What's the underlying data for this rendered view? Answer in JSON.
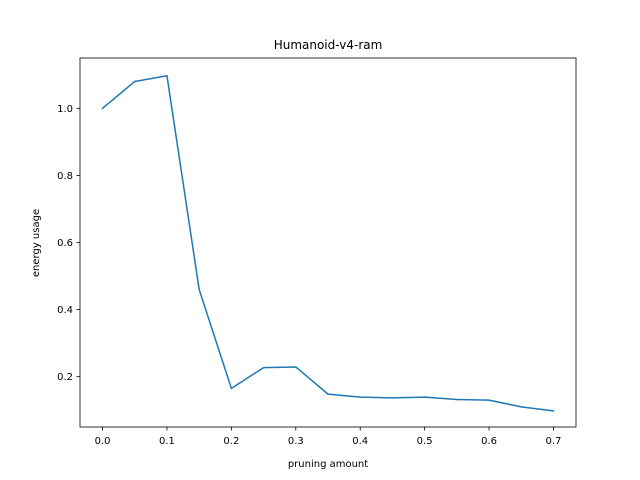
{
  "chart_data": {
    "type": "line",
    "title": "Humanoid-v4-ram",
    "xlabel": "pruning amount",
    "ylabel": "energy usage",
    "xlim": [
      -0.035,
      0.735
    ],
    "ylim": [
      0.05,
      1.15
    ],
    "grid": false,
    "x_ticks": [
      0.0,
      0.1,
      0.2,
      0.3,
      0.4,
      0.5,
      0.6,
      0.7
    ],
    "x_tick_labels": [
      "0.0",
      "0.1",
      "0.2",
      "0.3",
      "0.4",
      "0.5",
      "0.6",
      "0.7"
    ],
    "y_ticks": [
      0.2,
      0.4,
      0.6,
      0.8,
      1.0
    ],
    "y_tick_labels": [
      "0.2",
      "0.4",
      "0.6",
      "0.8",
      "1.0"
    ],
    "series": [
      {
        "color": "#1f77b4",
        "x": [
          0.0,
          0.05,
          0.1,
          0.15,
          0.2,
          0.25,
          0.3,
          0.35,
          0.4,
          0.45,
          0.5,
          0.55,
          0.6,
          0.65,
          0.7
        ],
        "y": [
          1.0,
          1.08,
          1.097,
          0.46,
          0.165,
          0.227,
          0.229,
          0.148,
          0.139,
          0.137,
          0.139,
          0.132,
          0.13,
          0.11,
          0.098
        ]
      }
    ]
  }
}
